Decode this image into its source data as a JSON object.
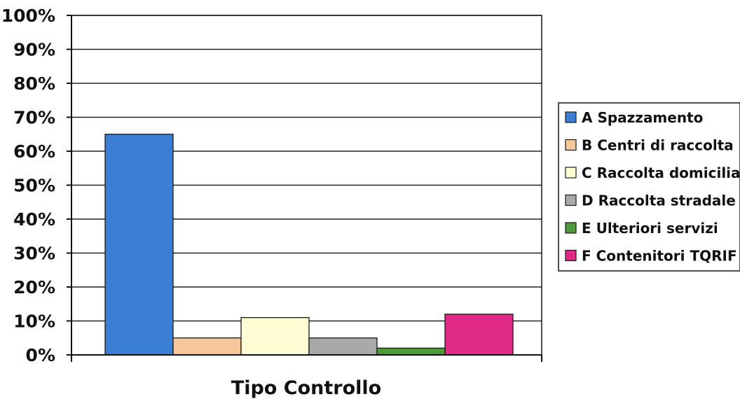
{
  "chart_data": {
    "type": "bar",
    "title": "",
    "xlabel": "Tipo Controllo",
    "ylabel": "",
    "ylim": [
      0,
      100
    ],
    "y_ticks": [
      0,
      10,
      20,
      30,
      40,
      50,
      60,
      70,
      80,
      90,
      100
    ],
    "y_tick_labels": [
      "0%",
      "10%",
      "20%",
      "30%",
      "40%",
      "50%",
      "60%",
      "70%",
      "80%",
      "90%",
      "100%"
    ],
    "grid": true,
    "legend_position": "right",
    "series": [
      {
        "name": "A Spazzamento",
        "value": 65,
        "color": "#3a7fd5"
      },
      {
        "name": "B Centri di raccolta",
        "value": 5,
        "color": "#f5c79a"
      },
      {
        "name": "C Raccolta domiciliare",
        "value": 11,
        "color": "#fdfcd2"
      },
      {
        "name": "D Raccolta stradale",
        "value": 5,
        "color": "#a9a9a9"
      },
      {
        "name": "E Ulteriori servizi",
        "value": 2,
        "color": "#4e9a3a"
      },
      {
        "name": "F Contenitori TQRIF",
        "value": 12,
        "color": "#e02b86"
      }
    ]
  }
}
